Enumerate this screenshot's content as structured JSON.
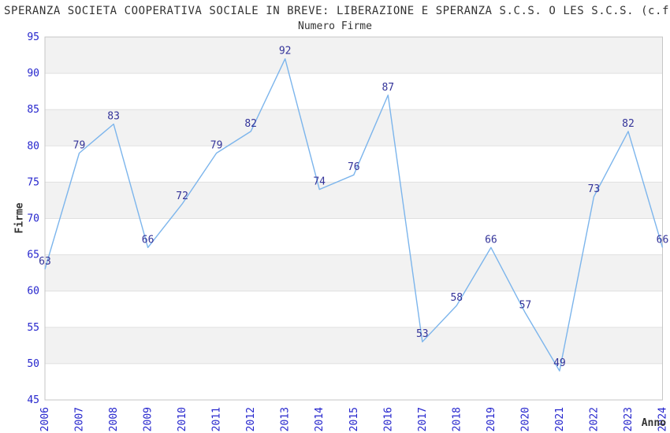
{
  "header": {
    "title": "SPERANZA SOCIETA COOPERATIVA SOCIALE IN BREVE: LIBERAZIONE E SPERANZA S.C.S. O LES S.C.S. (c.f"
  },
  "chart_data": {
    "type": "line",
    "title": "Numero Firme",
    "xlabel": "Anno",
    "ylabel": "Firme",
    "categories": [
      "2006",
      "2007",
      "2008",
      "2009",
      "2010",
      "2011",
      "2012",
      "2013",
      "2014",
      "2015",
      "2016",
      "2017",
      "2018",
      "2019",
      "2020",
      "2021",
      "2022",
      "2023",
      "2024"
    ],
    "series": [
      {
        "name": "Numero Firme",
        "values": [
          63,
          79,
          83,
          66,
          72,
          79,
          82,
          92,
          74,
          76,
          87,
          53,
          58,
          66,
          57,
          49,
          73,
          82,
          66
        ]
      }
    ],
    "ylim": [
      45,
      95
    ],
    "ytick_step": 5,
    "xtick_rotation": -90,
    "grid": "horizontal-alternating-bands",
    "legend": "none",
    "data_labels": true,
    "colors": {
      "line": "#7cb5ec",
      "data_label": "#333399",
      "tick_label": "#2525cd",
      "axis_title": "#333333",
      "band_dark": "#f2f2f2",
      "band_light": "#ffffff",
      "gridline": "#e0e0e0",
      "plot_border": "#c6c6c6",
      "background": "#ffffff"
    }
  }
}
